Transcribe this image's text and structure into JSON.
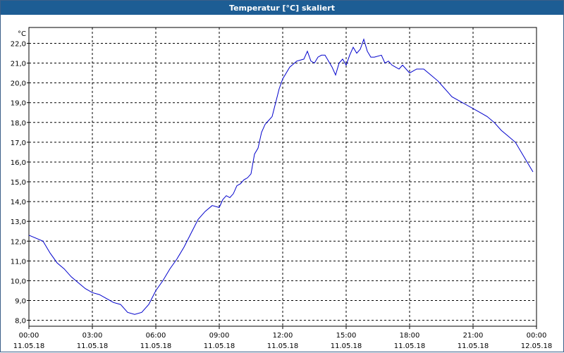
{
  "window": {
    "title": "Temperatur [°C] skaliert"
  },
  "chart_data": {
    "type": "line",
    "title": "Temperatur [°C] skaliert",
    "ylabel": "°C",
    "xlabel": "",
    "ylim": [
      7.7,
      22.8
    ],
    "xlim_hours": [
      0,
      24
    ],
    "grid": true,
    "line_color": "#0000cc",
    "y_ticks": [
      "8,0",
      "9,0",
      "10,0",
      "11,0",
      "12,0",
      "13,0",
      "14,0",
      "15,0",
      "16,0",
      "17,0",
      "18,0",
      "19,0",
      "20,0",
      "21,0",
      "22,0"
    ],
    "x_ticks": [
      {
        "time": "00:00",
        "date": "11.05.18"
      },
      {
        "time": "03:00",
        "date": "11.05.18"
      },
      {
        "time": "06:00",
        "date": "11.05.18"
      },
      {
        "time": "09:00",
        "date": "11.05.18"
      },
      {
        "time": "12:00",
        "date": "11.05.18"
      },
      {
        "time": "15:00",
        "date": "11.05.18"
      },
      {
        "time": "18:00",
        "date": "11.05.18"
      },
      {
        "time": "21:00",
        "date": "11.05.18"
      },
      {
        "time": "00:00",
        "date": "12.05.18"
      }
    ],
    "series": [
      {
        "x": [
          "2018-05-11 00:00",
          "2018-05-11 00:40",
          "2018-05-11 01:00",
          "2018-05-11 01:20",
          "2018-05-11 01:40",
          "2018-05-11 02:00",
          "2018-05-11 02:20",
          "2018-05-11 02:40",
          "2018-05-11 03:00",
          "2018-05-11 03:20",
          "2018-05-11 03:40",
          "2018-05-11 04:00",
          "2018-05-11 04:20",
          "2018-05-11 04:40",
          "2018-05-11 05:00",
          "2018-05-11 05:20",
          "2018-05-11 05:40",
          "2018-05-11 06:00",
          "2018-05-11 06:20",
          "2018-05-11 06:40",
          "2018-05-11 07:00",
          "2018-05-11 07:20",
          "2018-05-11 07:40",
          "2018-05-11 08:00",
          "2018-05-11 08:20",
          "2018-05-11 08:40",
          "2018-05-11 09:00",
          "2018-05-11 09:10",
          "2018-05-11 09:20",
          "2018-05-11 09:30",
          "2018-05-11 09:40",
          "2018-05-11 09:50",
          "2018-05-11 10:00",
          "2018-05-11 10:10",
          "2018-05-11 10:20",
          "2018-05-11 10:30",
          "2018-05-11 10:40",
          "2018-05-11 10:50",
          "2018-05-11 11:00",
          "2018-05-11 11:10",
          "2018-05-11 11:20",
          "2018-05-11 11:30",
          "2018-05-11 11:40",
          "2018-05-11 11:50",
          "2018-05-11 12:00",
          "2018-05-11 12:20",
          "2018-05-11 12:40",
          "2018-05-11 13:00",
          "2018-05-11 13:10",
          "2018-05-11 13:20",
          "2018-05-11 13:30",
          "2018-05-11 13:40",
          "2018-05-11 13:50",
          "2018-05-11 14:00",
          "2018-05-11 14:10",
          "2018-05-11 14:20",
          "2018-05-11 14:30",
          "2018-05-11 14:40",
          "2018-05-11 14:50",
          "2018-05-11 15:00",
          "2018-05-11 15:10",
          "2018-05-11 15:20",
          "2018-05-11 15:30",
          "2018-05-11 15:40",
          "2018-05-11 15:50",
          "2018-05-11 16:00",
          "2018-05-11 16:10",
          "2018-05-11 16:20",
          "2018-05-11 16:40",
          "2018-05-11 16:50",
          "2018-05-11 17:00",
          "2018-05-11 17:10",
          "2018-05-11 17:20",
          "2018-05-11 17:30",
          "2018-05-11 17:40",
          "2018-05-11 17:50",
          "2018-05-11 18:00",
          "2018-05-11 18:20",
          "2018-05-11 18:40",
          "2018-05-11 19:00",
          "2018-05-11 19:20",
          "2018-05-11 19:40",
          "2018-05-11 20:00",
          "2018-05-11 20:20",
          "2018-05-11 20:40",
          "2018-05-11 21:00",
          "2018-05-11 21:20",
          "2018-05-11 21:40",
          "2018-05-11 22:00",
          "2018-05-11 22:20",
          "2018-05-11 22:40",
          "2018-05-11 23:00",
          "2018-05-11 23:20",
          "2018-05-11 23:40",
          "2018-05-11 23:50"
        ],
        "y": [
          12.3,
          12.0,
          11.4,
          10.9,
          10.6,
          10.2,
          9.9,
          9.6,
          9.4,
          9.3,
          9.1,
          8.9,
          8.8,
          8.4,
          8.3,
          8.4,
          8.8,
          9.5,
          10.0,
          10.6,
          11.1,
          11.7,
          12.4,
          13.1,
          13.5,
          13.8,
          13.7,
          14.1,
          14.3,
          14.2,
          14.4,
          14.8,
          14.9,
          15.1,
          15.2,
          15.4,
          16.4,
          16.7,
          17.5,
          17.9,
          18.1,
          18.3,
          19.0,
          19.7,
          20.2,
          20.8,
          21.1,
          21.2,
          21.6,
          21.1,
          21.0,
          21.3,
          21.4,
          21.4,
          21.1,
          20.8,
          20.4,
          21.0,
          21.2,
          20.9,
          21.4,
          21.8,
          21.5,
          21.7,
          22.2,
          21.6,
          21.3,
          21.3,
          21.4,
          21.0,
          21.1,
          20.9,
          20.8,
          20.7,
          20.9,
          20.7,
          20.5,
          20.7,
          20.7,
          20.4,
          20.1,
          19.7,
          19.3,
          19.1,
          18.9,
          18.7,
          18.5,
          18.3,
          18.0,
          17.6,
          17.3,
          17.0,
          16.4,
          15.8,
          15.5
        ]
      }
    ]
  }
}
